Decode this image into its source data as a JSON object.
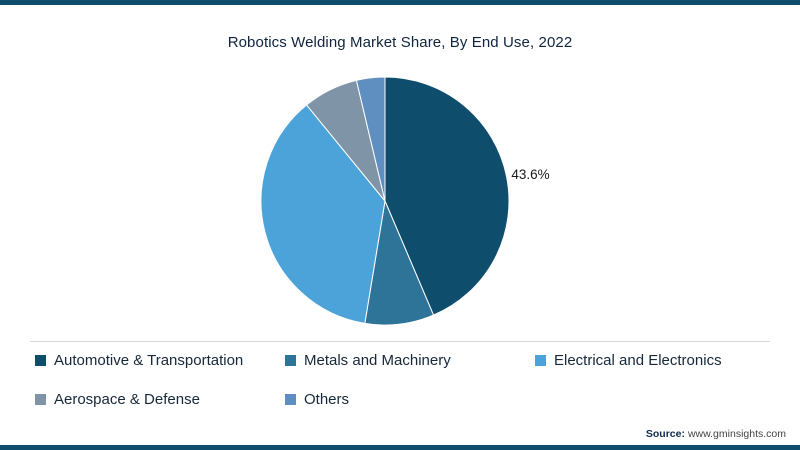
{
  "page": {
    "accent_color": "#0e4d6c",
    "source_prefix": "Source:",
    "source_text": "www.gminsights.com"
  },
  "chart_data": {
    "type": "pie",
    "title": "Robotics Welding Market Share, By End Use, 2022",
    "start_angle_deg": 0,
    "direction": "clockwise",
    "legend_position": "bottom",
    "slices": [
      {
        "label": "Automotive & Transportation",
        "value": 43.6,
        "color": "#0e4d6c",
        "data_label": "43.6%"
      },
      {
        "label": "Metals and Machinery",
        "value": 9.0,
        "color": "#2e7398",
        "data_label": ""
      },
      {
        "label": "Electrical and Electronics",
        "value": 36.5,
        "color": "#4ba3d9",
        "data_label": ""
      },
      {
        "label": "Aerospace & Defense",
        "value": 7.2,
        "color": "#8094a7",
        "data_label": ""
      },
      {
        "label": "Others",
        "value": 3.7,
        "color": "#5f8fc0",
        "data_label": ""
      }
    ]
  }
}
